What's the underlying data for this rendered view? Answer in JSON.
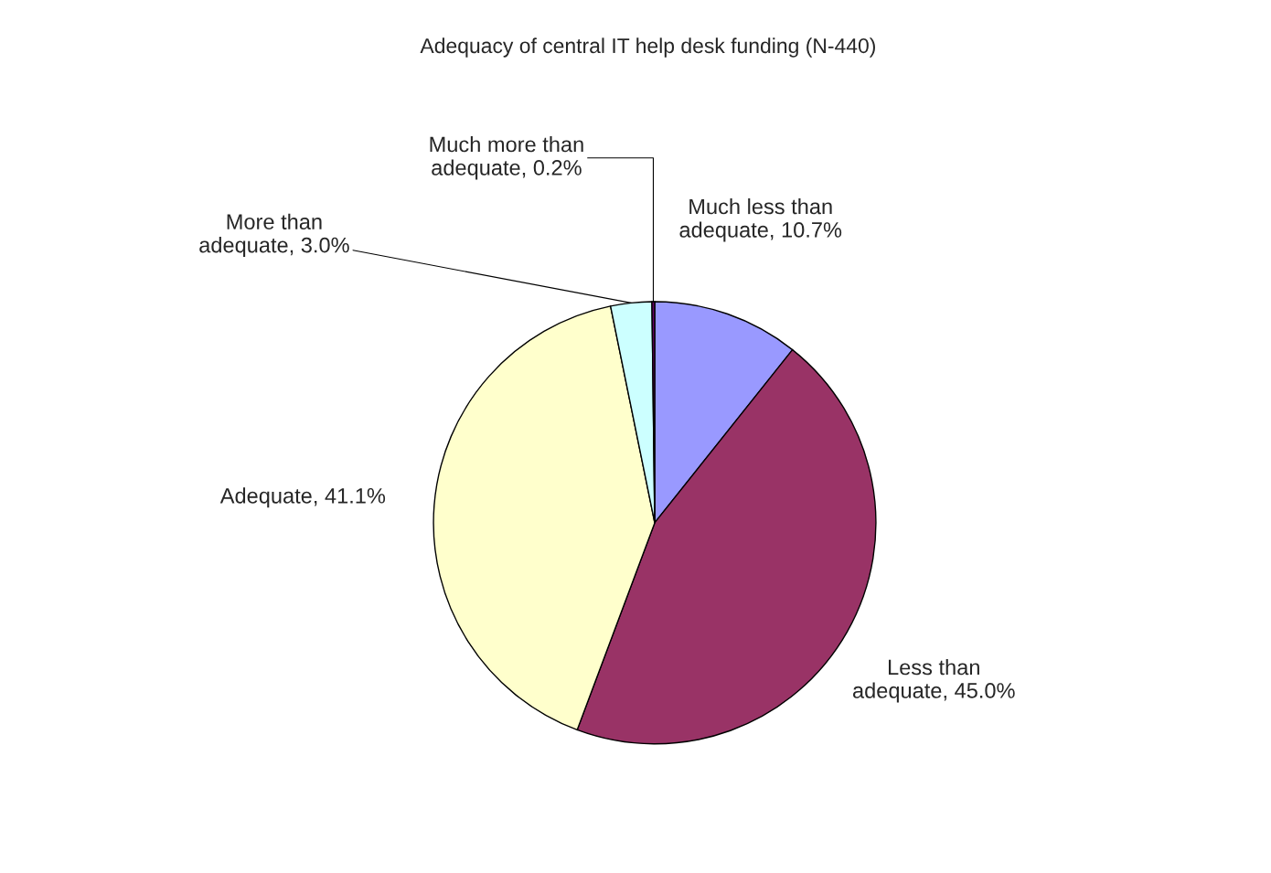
{
  "chart_data": {
    "type": "pie",
    "title": "Adequacy of central IT help desk funding (N-440)",
    "categories": [
      "Much less than adequate",
      "Less than adequate",
      "Adequate",
      "More than adequate",
      "Much more than adequate"
    ],
    "values": [
      10.7,
      45.0,
      41.1,
      3.0,
      0.2
    ],
    "value_labels": [
      "10.7%",
      "45.0%",
      "41.1%",
      "3.0%",
      "0.2%"
    ],
    "colors": [
      "#9999ff",
      "#993366",
      "#ffffcc",
      "#ccffff",
      "#660066"
    ],
    "legend": false
  }
}
